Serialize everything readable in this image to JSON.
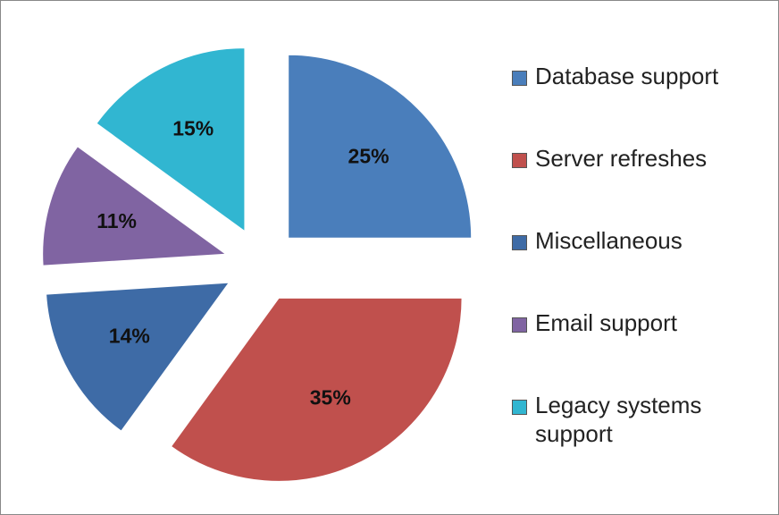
{
  "chart_data": {
    "type": "pie",
    "categories": [
      "Database support",
      "Server refreshes",
      "Miscellaneous",
      "Email support",
      "Legacy systems support"
    ],
    "values": [
      25,
      35,
      14,
      11,
      15
    ],
    "value_labels": [
      "25%",
      "35%",
      "14%",
      "11%",
      "15%"
    ],
    "colors": [
      "#4a7ebb",
      "#c0504d",
      "#3e6ba6",
      "#8064a2",
      "#31b6d1"
    ],
    "exploded": true,
    "legend": "right"
  }
}
